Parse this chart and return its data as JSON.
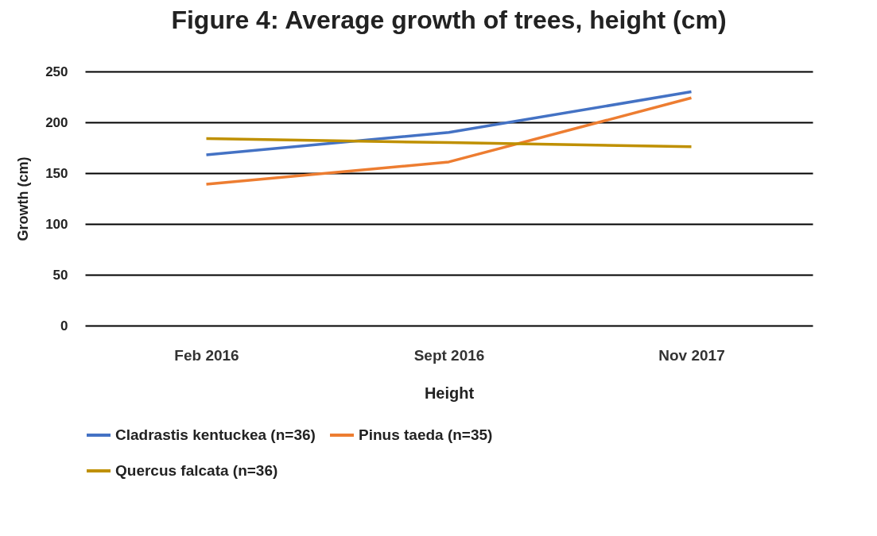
{
  "chart_data": {
    "type": "line",
    "title": "Figure 4: Average growth of trees, height (cm)",
    "xlabel": "Height",
    "ylabel": "Growth (cm)",
    "categories": [
      "Feb 2016",
      "Sept 2016",
      "Nov 2017"
    ],
    "series": [
      {
        "name": "Cladrastis kentuckea (n=36)",
        "color": "#4472c4",
        "values": [
          168,
          190,
          230
        ]
      },
      {
        "name": "Pinus taeda (n=35)",
        "color": "#ed7d31",
        "values": [
          139,
          161,
          224
        ]
      },
      {
        "name": "Quercus falcata (n=36)",
        "color": "#bf9000",
        "values": [
          184,
          180,
          176
        ]
      }
    ],
    "ylim": [
      0,
      250
    ],
    "yticks": [
      0,
      50,
      100,
      150,
      200,
      250
    ],
    "grid": "y",
    "legend": "bottom",
    "marker": "none",
    "line_style": "solid"
  }
}
